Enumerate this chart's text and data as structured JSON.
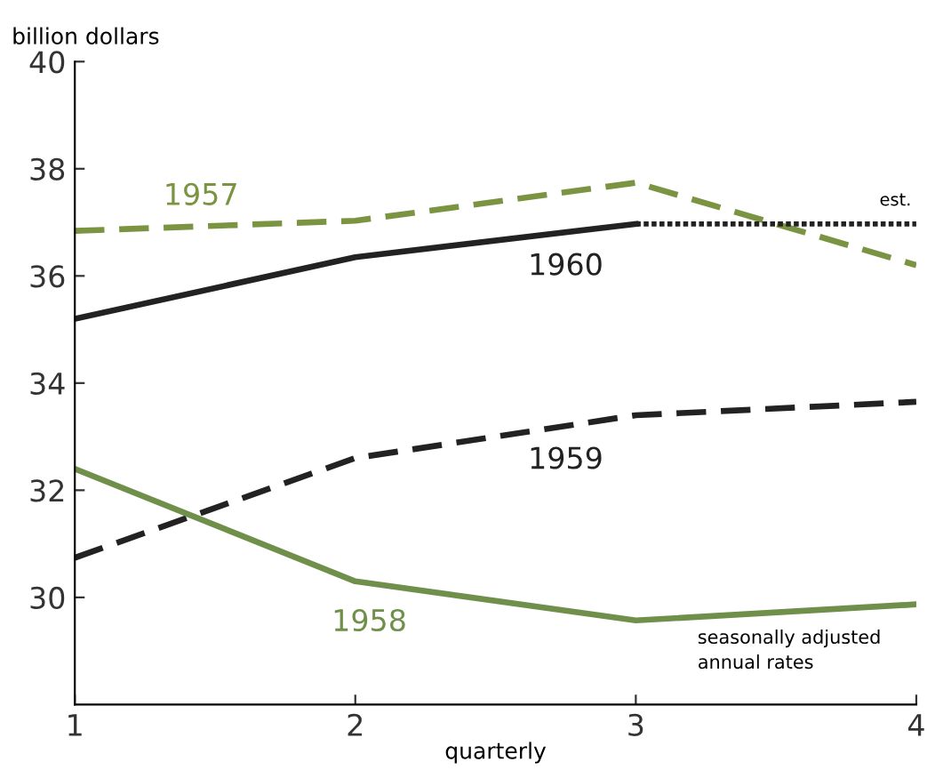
{
  "chart_data": {
    "type": "line",
    "ylabel": "billion dollars",
    "xlabel": "quarterly",
    "x": [
      1,
      2,
      3,
      4
    ],
    "xlim": [
      1,
      4
    ],
    "xticks": [
      1,
      2,
      3,
      4
    ],
    "ylim": [
      28,
      40
    ],
    "yticks": [
      30,
      32,
      34,
      36,
      38,
      40
    ],
    "series": [
      {
        "name": "1957",
        "color": "#7a9442",
        "line_style": "dashed",
        "values": [
          36.84,
          37.03,
          37.74,
          36.2
        ]
      },
      {
        "name": "1960",
        "color": "#222222",
        "line_style": "solid",
        "x": [
          1,
          2,
          3
        ],
        "values": [
          35.2,
          36.35,
          36.97
        ]
      },
      {
        "color": "#222222",
        "line_style": "dotted",
        "x": [
          3,
          4
        ],
        "values": [
          36.97,
          36.97
        ]
      },
      {
        "name": "1959",
        "color": "#222222",
        "line_style": "dashed",
        "values": [
          30.74,
          32.6,
          33.4,
          33.65
        ]
      },
      {
        "name": "1958",
        "color": "#6f8f4a",
        "line_style": "solid",
        "values": [
          32.4,
          30.3,
          29.57,
          29.87
        ]
      }
    ],
    "annotations": [
      {
        "text": "est.",
        "x": 4,
        "y": 36.97
      },
      "seasonally adjusted\nannual rates"
    ],
    "grid": false,
    "legend": false,
    "marker": "none"
  }
}
